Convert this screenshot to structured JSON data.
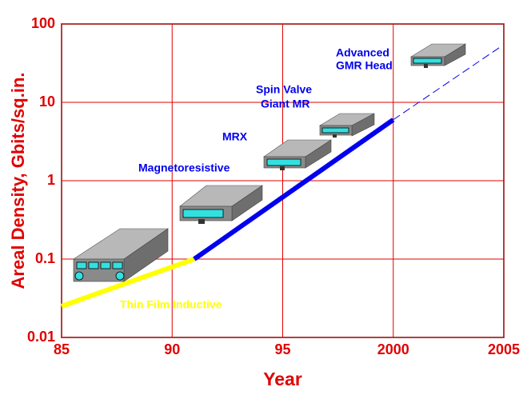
{
  "chart_data": {
    "type": "line",
    "xlabel": "Year",
    "ylabel": "Areal Density, Gbits/sq.in.",
    "xlim": [
      1985,
      2005
    ],
    "xticks": [
      {
        "value": 1985,
        "label": "85"
      },
      {
        "value": 1990,
        "label": "90"
      },
      {
        "value": 1995,
        "label": "95"
      },
      2000,
      2005
    ],
    "ylim": [
      0.01,
      100
    ],
    "ylog": true,
    "yticks": [
      100,
      10,
      1,
      0.1,
      0.01
    ],
    "grid": true,
    "grid_color": "#e00000",
    "axis_text_color": "#e00000",
    "series": [
      {
        "color": "#ffff00",
        "x": [
          1985,
          1991
        ],
        "values": [
          0.025,
          0.1
        ],
        "linestyle": "solid"
      },
      {
        "color": "#0000ee",
        "x": [
          1991,
          2000
        ],
        "values": [
          0.1,
          6
        ],
        "linestyle": "solid"
      },
      {
        "color": "#0000ee",
        "x": [
          2000,
          2004.8
        ],
        "values": [
          6,
          50
        ],
        "linestyle": "dashed"
      }
    ],
    "annotations": [
      {
        "text": "Thin Film Inductive",
        "color": "#ffff00"
      },
      {
        "text": "Magnetoresistive",
        "color": "#0000ee"
      },
      {
        "text": "MRX",
        "color": "#0000ee"
      },
      {
        "text": "Spin Valve",
        "color": "#0000ee"
      },
      {
        "text": "Giant MR",
        "color": "#0000ee"
      },
      {
        "text": "Advanced",
        "color": "#0000ee"
      },
      {
        "text": "GMR Head",
        "color": "#0000ee"
      }
    ]
  }
}
